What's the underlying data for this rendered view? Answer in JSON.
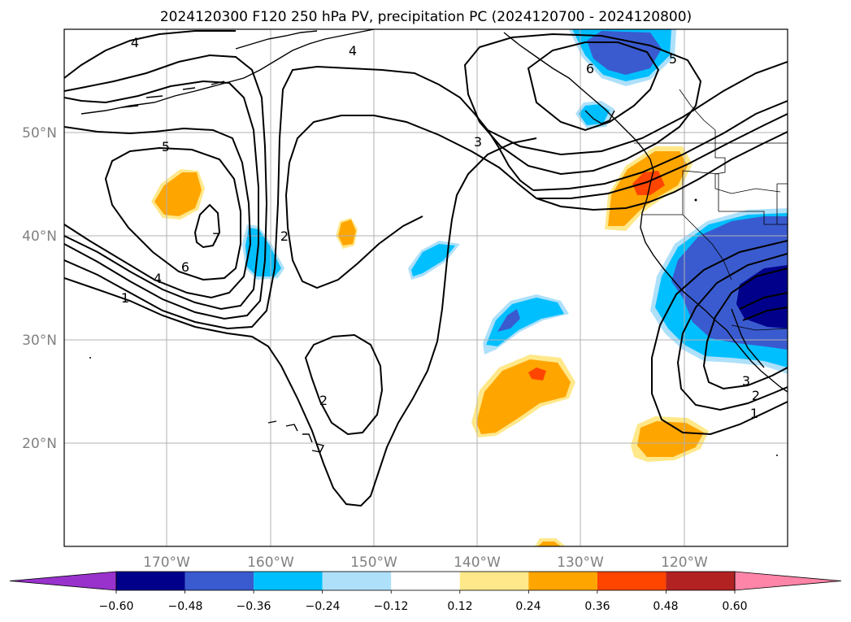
{
  "title": "2024120300 F120 250 hPa PV, precipitation PC (2024120700 - 2024120800)",
  "axes": {
    "lon_ticks": [
      {
        "value": -170,
        "label": "170°W"
      },
      {
        "value": -160,
        "label": "160°W"
      },
      {
        "value": -150,
        "label": "150°W"
      },
      {
        "value": -140,
        "label": "140°W"
      },
      {
        "value": -130,
        "label": "130°W"
      },
      {
        "value": -120,
        "label": "120°W"
      }
    ],
    "lat_ticks": [
      {
        "value": 20,
        "label": "20°N"
      },
      {
        "value": 30,
        "label": "30°N"
      },
      {
        "value": 40,
        "label": "40°N"
      },
      {
        "value": 50,
        "label": "50°N"
      }
    ],
    "lon_range": [
      -180,
      -110
    ],
    "lat_range": [
      10,
      60
    ],
    "grid": true
  },
  "colorbar": {
    "ticks": [
      "−0.60",
      "−0.48",
      "−0.36",
      "−0.24",
      "−0.12",
      "0.12",
      "0.24",
      "0.36",
      "0.48",
      "0.60"
    ],
    "colors": [
      "#9932cc",
      "#00008b",
      "#3a5bcf",
      "#00bfff",
      "#aee0fa",
      "#ffffff",
      "#ffe88a",
      "#ffa500",
      "#ff4500",
      "#b22222",
      "#ff85a8"
    ],
    "extend": "both"
  },
  "pv_labels": [
    {
      "text": "4",
      "name": "pv-label-4-nw"
    },
    {
      "text": "4",
      "name": "pv-label-4-n"
    },
    {
      "text": "5",
      "name": "pv-label-5-west"
    },
    {
      "text": "7",
      "name": "pv-label-7"
    },
    {
      "text": "6",
      "name": "pv-label-6-west"
    },
    {
      "text": "4",
      "name": "pv-label-4-west"
    },
    {
      "text": "1",
      "name": "pv-label-1-west"
    },
    {
      "text": "2",
      "name": "pv-label-2-central"
    },
    {
      "text": "2",
      "name": "pv-label-2-south"
    },
    {
      "text": "3",
      "name": "pv-label-3-north"
    },
    {
      "text": "6",
      "name": "pv-label-6-alaska"
    },
    {
      "text": "5",
      "name": "pv-label-5-alaska"
    },
    {
      "text": "3",
      "name": "pv-label-3-se"
    },
    {
      "text": "2",
      "name": "pv-label-2-se"
    },
    {
      "text": "1",
      "name": "pv-label-1-se"
    }
  ]
}
